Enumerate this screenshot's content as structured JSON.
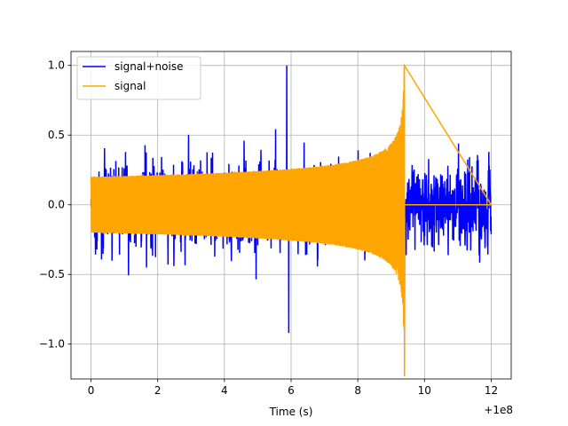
{
  "chart_data": {
    "type": "line",
    "title": "",
    "xlabel": "Time (s)",
    "ylabel": "",
    "x_offset_label": "+1e8",
    "xlim": [
      -0.6,
      12.6
    ],
    "ylim": [
      -1.25,
      1.1
    ],
    "xticks": [
      0,
      2,
      4,
      6,
      8,
      10,
      12
    ],
    "xtick_labels": [
      "0",
      "2",
      "4",
      "6",
      "8",
      "10",
      "12"
    ],
    "yticks": [
      -1.0,
      -0.5,
      0.0,
      0.5,
      1.0
    ],
    "ytick_labels": [
      "−1.0",
      "−0.5",
      "0.0",
      "0.5",
      "1.0"
    ],
    "grid": true,
    "legend_position": "upper-left",
    "series": [
      {
        "name": "signal+noise",
        "color": "#0000ff",
        "description_values": {
          "x_range": [
            0,
            12
          ],
          "notable_points": [
            {
              "x": 5.87,
              "y": 1.0
            },
            {
              "x": 5.93,
              "y": -0.92
            },
            {
              "x": 9.4,
              "y": -1.23
            }
          ],
          "typical_amplitude": 0.3
        }
      },
      {
        "name": "signal",
        "color": "#ffa500",
        "description_values": {
          "x_range": [
            0,
            12
          ],
          "chirp_merger_time": 9.4,
          "envelope_start": 0.2,
          "peak_max": 1.0,
          "peak_min": -1.23,
          "post_merger_value": 0.0
        }
      }
    ]
  }
}
